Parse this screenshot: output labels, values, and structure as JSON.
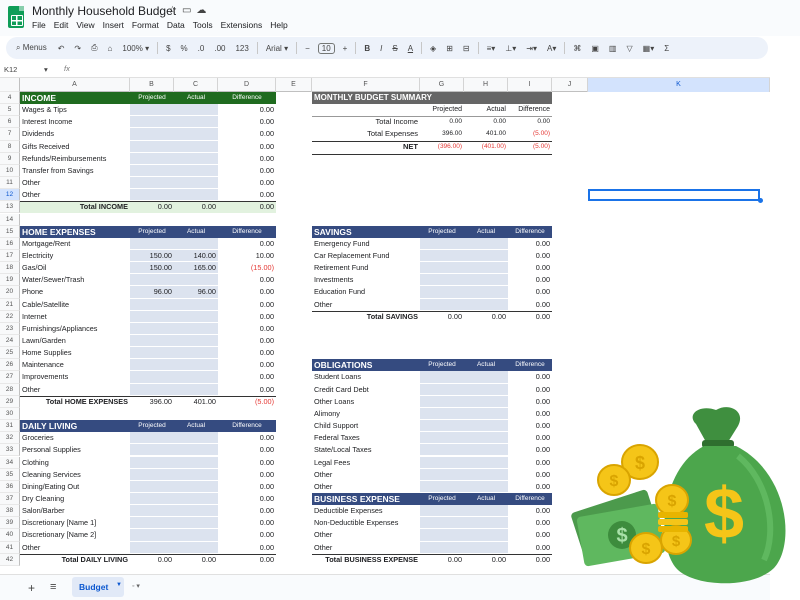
{
  "app": {
    "title": "Monthly Household Budget",
    "menu": [
      "File",
      "Edit",
      "View",
      "Insert",
      "Format",
      "Data",
      "Tools",
      "Extensions",
      "Help"
    ]
  },
  "toolbar": {
    "menus": "Menus",
    "zoom": "100%",
    "currency": "$",
    "percent": "%",
    "dec_less": ".0",
    "dec_more": ".00",
    "num_format": "123",
    "font": "Arial",
    "font_size": "10",
    "bold": "B",
    "italic": "I",
    "strike": "S",
    "text_color": "A"
  },
  "formula": {
    "cell_ref": "K12",
    "fx": "fx"
  },
  "columns": [
    "A",
    "B",
    "C",
    "D",
    "E",
    "F",
    "G",
    "H",
    "I",
    "J",
    "K"
  ],
  "rows": [
    "4",
    "5",
    "6",
    "7",
    "8",
    "9",
    "10",
    "11",
    "12",
    "13",
    "14",
    "15",
    "16",
    "17",
    "18",
    "19",
    "20",
    "21",
    "22",
    "23",
    "24",
    "25",
    "26",
    "27",
    "28",
    "29",
    "30",
    "31",
    "32",
    "33",
    "34",
    "35",
    "36",
    "37",
    "38",
    "39",
    "40",
    "41",
    "42"
  ],
  "income": {
    "title": "INCOME",
    "cols": [
      "Projected",
      "Actual",
      "Difference"
    ],
    "items": [
      {
        "label": "Wages & Tips",
        "diff": "0.00"
      },
      {
        "label": "Interest Income",
        "diff": "0.00"
      },
      {
        "label": "Dividends",
        "diff": "0.00"
      },
      {
        "label": "Gifts Received",
        "diff": "0.00"
      },
      {
        "label": "Refunds/Reimbursements",
        "diff": "0.00"
      },
      {
        "label": "Transfer from Savings",
        "diff": "0.00"
      },
      {
        "label": "Other",
        "diff": "0.00"
      },
      {
        "label": "Other",
        "diff": "0.00"
      }
    ],
    "total": {
      "label": "Total INCOME",
      "proj": "0.00",
      "act": "0.00",
      "diff": "0.00"
    }
  },
  "home": {
    "title": "HOME EXPENSES",
    "cols": [
      "Projected",
      "Actual",
      "Difference"
    ],
    "items": [
      {
        "label": "Mortgage/Rent",
        "proj": "",
        "act": "",
        "diff": "0.00"
      },
      {
        "label": "Electricity",
        "proj": "150.00",
        "act": "140.00",
        "diff": "10.00"
      },
      {
        "label": "Gas/Oil",
        "proj": "150.00",
        "act": "165.00",
        "diff": "(15.00)",
        "neg": true
      },
      {
        "label": "Water/Sewer/Trash",
        "proj": "",
        "act": "",
        "diff": "0.00"
      },
      {
        "label": "Phone",
        "proj": "96.00",
        "act": "96.00",
        "diff": "0.00"
      },
      {
        "label": "Cable/Satellite",
        "proj": "",
        "act": "",
        "diff": "0.00"
      },
      {
        "label": "Internet",
        "proj": "",
        "act": "",
        "diff": "0.00"
      },
      {
        "label": "Furnishings/Appliances",
        "proj": "",
        "act": "",
        "diff": "0.00"
      },
      {
        "label": "Lawn/Garden",
        "proj": "",
        "act": "",
        "diff": "0.00"
      },
      {
        "label": "Home Supplies",
        "proj": "",
        "act": "",
        "diff": "0.00"
      },
      {
        "label": "Maintenance",
        "proj": "",
        "act": "",
        "diff": "0.00"
      },
      {
        "label": "Improvements",
        "proj": "",
        "act": "",
        "diff": "0.00"
      },
      {
        "label": "Other",
        "proj": "",
        "act": "",
        "diff": "0.00"
      }
    ],
    "total": {
      "label": "Total HOME EXPENSES",
      "proj": "396.00",
      "act": "401.00",
      "diff": "(5.00)"
    }
  },
  "daily": {
    "title": "DAILY LIVING",
    "cols": [
      "Projected",
      "Actual",
      "Difference"
    ],
    "items": [
      {
        "label": "Groceries",
        "diff": "0.00"
      },
      {
        "label": "Personal Supplies",
        "diff": "0.00"
      },
      {
        "label": "Clothing",
        "diff": "0.00"
      },
      {
        "label": "Cleaning Services",
        "diff": "0.00"
      },
      {
        "label": "Dining/Eating Out",
        "diff": "0.00"
      },
      {
        "label": "Dry Cleaning",
        "diff": "0.00"
      },
      {
        "label": "Salon/Barber",
        "diff": "0.00"
      },
      {
        "label": "Discretionary [Name 1]",
        "diff": "0.00"
      },
      {
        "label": "Discretionary [Name 2]",
        "diff": "0.00"
      },
      {
        "label": "Other",
        "diff": "0.00"
      }
    ],
    "total": {
      "label": "Total DAILY LIVING",
      "proj": "0.00",
      "act": "0.00",
      "diff": "0.00"
    }
  },
  "summary": {
    "title": "MONTHLY BUDGET SUMMARY",
    "cols": [
      "Projected",
      "Actual",
      "Difference"
    ],
    "rows": [
      {
        "label": "Total Income",
        "proj": "0.00",
        "act": "0.00",
        "diff": "0.00"
      },
      {
        "label": "Total Expenses",
        "proj": "396.00",
        "act": "401.00",
        "diff": "(5.00)"
      },
      {
        "label": "NET",
        "proj": "(396.00)",
        "act": "(401.00)",
        "diff": "(5.00)"
      }
    ]
  },
  "savings": {
    "title": "SAVINGS",
    "cols": [
      "Projected",
      "Actual",
      "Difference"
    ],
    "items": [
      {
        "label": "Emergency Fund",
        "diff": "0.00"
      },
      {
        "label": "Car Replacement Fund",
        "diff": "0.00"
      },
      {
        "label": "Retirement Fund",
        "diff": "0.00"
      },
      {
        "label": "Investments",
        "diff": "0.00"
      },
      {
        "label": "Education Fund",
        "diff": "0.00"
      },
      {
        "label": "Other",
        "diff": "0.00"
      }
    ],
    "total": {
      "label": "Total SAVINGS",
      "proj": "0.00",
      "act": "0.00",
      "diff": "0.00"
    }
  },
  "obligations": {
    "title": "OBLIGATIONS",
    "cols": [
      "Projected",
      "Actual",
      "Difference"
    ],
    "items": [
      {
        "label": "Student Loans",
        "diff": "0.00"
      },
      {
        "label": "Credit Card Debt",
        "diff": "0.00"
      },
      {
        "label": "Other Loans",
        "diff": "0.00"
      },
      {
        "label": "Alimony",
        "diff": "0.00"
      },
      {
        "label": "Child Support",
        "diff": "0.00"
      },
      {
        "label": "Federal Taxes",
        "diff": "0.00"
      },
      {
        "label": "State/Local Taxes",
        "diff": "0.00"
      },
      {
        "label": "Legal Fees",
        "diff": "0.00"
      },
      {
        "label": "Other",
        "diff": "0.00"
      },
      {
        "label": "Other",
        "diff": "0.00"
      }
    ],
    "total": {
      "label": "Total OBLIGATIONS",
      "proj": "0.00",
      "act": "0.00",
      "diff": "0.00"
    }
  },
  "business": {
    "title": "BUSINESS EXPENSE",
    "cols": [
      "Projected",
      "Actual",
      "Difference"
    ],
    "items": [
      {
        "label": "Deductible Expenses",
        "diff": "0.00"
      },
      {
        "label": "Non-Deductible Expenses",
        "diff": "0.00"
      },
      {
        "label": "Other",
        "diff": "0.00"
      },
      {
        "label": "Other",
        "diff": "0.00"
      }
    ],
    "total": {
      "label": "Total BUSINESS EXPENSE",
      "proj": "0.00",
      "act": "0.00",
      "diff": "0.00"
    }
  },
  "tabs": {
    "active": "Budget"
  },
  "colors": {
    "income_header": "#1f6b1f",
    "section_header": "#354b80",
    "summary_header": "#666666",
    "negative": "#e53935",
    "input_shade": "#dce3ef"
  },
  "icons": [
    "star-icon",
    "folder-icon",
    "cloud-icon",
    "money-bag-icon",
    "coins-icon",
    "cash-icon"
  ]
}
